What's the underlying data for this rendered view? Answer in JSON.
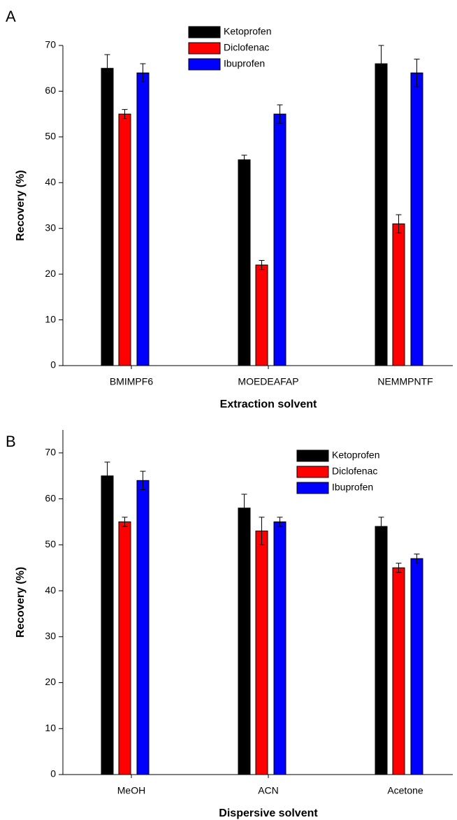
{
  "chart_data": [
    {
      "type": "bar",
      "panel": "A",
      "xlabel": "Extraction solvent",
      "ylabel": "Recovery (%)",
      "categories": [
        "BMIMPF6",
        "MOEDEAFAP",
        "NEMMPNTF"
      ],
      "series": [
        {
          "name": "Ketoprofen",
          "color": "#000000",
          "values": [
            65,
            45,
            66
          ],
          "errors": [
            3,
            1,
            4
          ]
        },
        {
          "name": "Diclofenac",
          "color": "#ff0000",
          "values": [
            55,
            22,
            31
          ],
          "errors": [
            1,
            1,
            2
          ]
        },
        {
          "name": "Ibuprofen",
          "color": "#0000ff",
          "values": [
            64,
            55,
            64
          ],
          "errors": [
            2,
            2,
            3
          ]
        }
      ],
      "ylim": [
        0,
        70
      ],
      "yticks": [
        0,
        10,
        20,
        30,
        40,
        50,
        60,
        70
      ]
    },
    {
      "type": "bar",
      "panel": "B",
      "xlabel": "Dispersive solvent",
      "ylabel": "Recovery (%)",
      "categories": [
        "MeOH",
        "ACN",
        "Acetone"
      ],
      "series": [
        {
          "name": "Ketoprofen",
          "color": "#000000",
          "values": [
            65,
            58,
            54
          ],
          "errors": [
            3,
            3,
            2
          ]
        },
        {
          "name": "Diclofenac",
          "color": "#ff0000",
          "values": [
            55,
            53,
            45
          ],
          "errors": [
            1,
            3,
            1
          ]
        },
        {
          "name": "Ibuprofen",
          "color": "#0000ff",
          "values": [
            64,
            55,
            47
          ],
          "errors": [
            2,
            1,
            1
          ]
        }
      ],
      "ylim": [
        0,
        75
      ],
      "yticks": [
        0,
        10,
        20,
        30,
        40,
        50,
        60,
        70
      ]
    }
  ]
}
